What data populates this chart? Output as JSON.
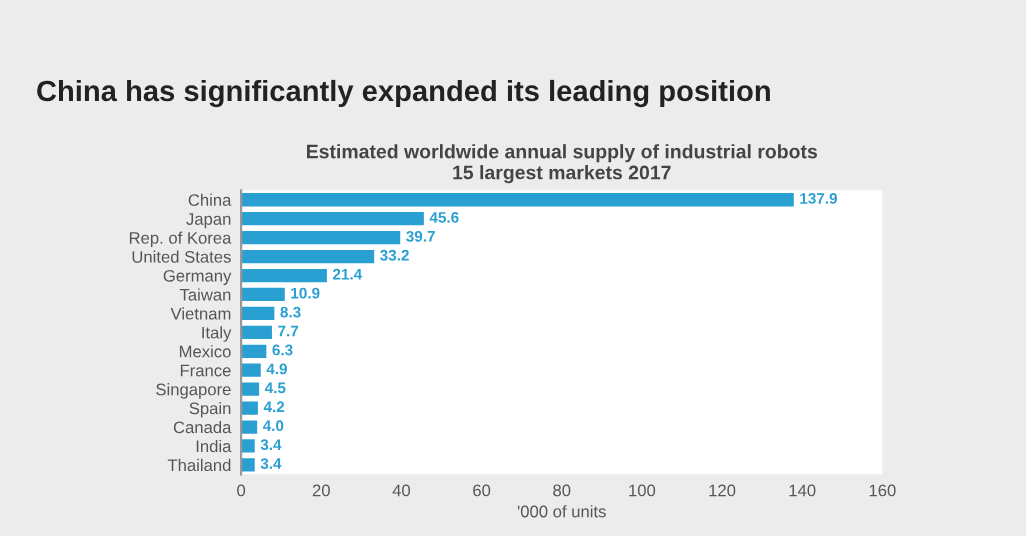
{
  "chart_data": {
    "type": "bar",
    "orientation": "horizontal",
    "title": "Estimated worldwide annual supply of industrial robots\n15 largest markets 2017",
    "subtitle": "China has significantly expanded its leading position",
    "xlabel": "'000 of units",
    "categories": [
      "China",
      "Japan",
      "Rep. of Korea",
      "United States",
      "Germany",
      "Taiwan",
      "Vietnam",
      "Italy",
      "Mexico",
      "France",
      "Singapore",
      "Spain",
      "Canada",
      "India",
      "Thailand"
    ],
    "values": [
      137.9,
      45.6,
      39.7,
      33.2,
      21.4,
      10.9,
      8.3,
      7.7,
      6.3,
      4.9,
      4.5,
      4.2,
      4.0,
      3.4,
      3.4
    ],
    "color": "#2a9fd2",
    "xlim": [
      0,
      160
    ],
    "xticks": [
      0,
      20,
      40,
      60,
      80,
      100,
      120,
      140,
      160
    ],
    "value_labels": [
      "137.9",
      "45.6",
      "39.7",
      "33.2",
      "21.4",
      "10.9",
      "8.3",
      "7.7",
      "6.3",
      "4.9",
      "4.5",
      "4.2",
      "4.0",
      "3.4",
      "3.4"
    ],
    "grid": false
  }
}
